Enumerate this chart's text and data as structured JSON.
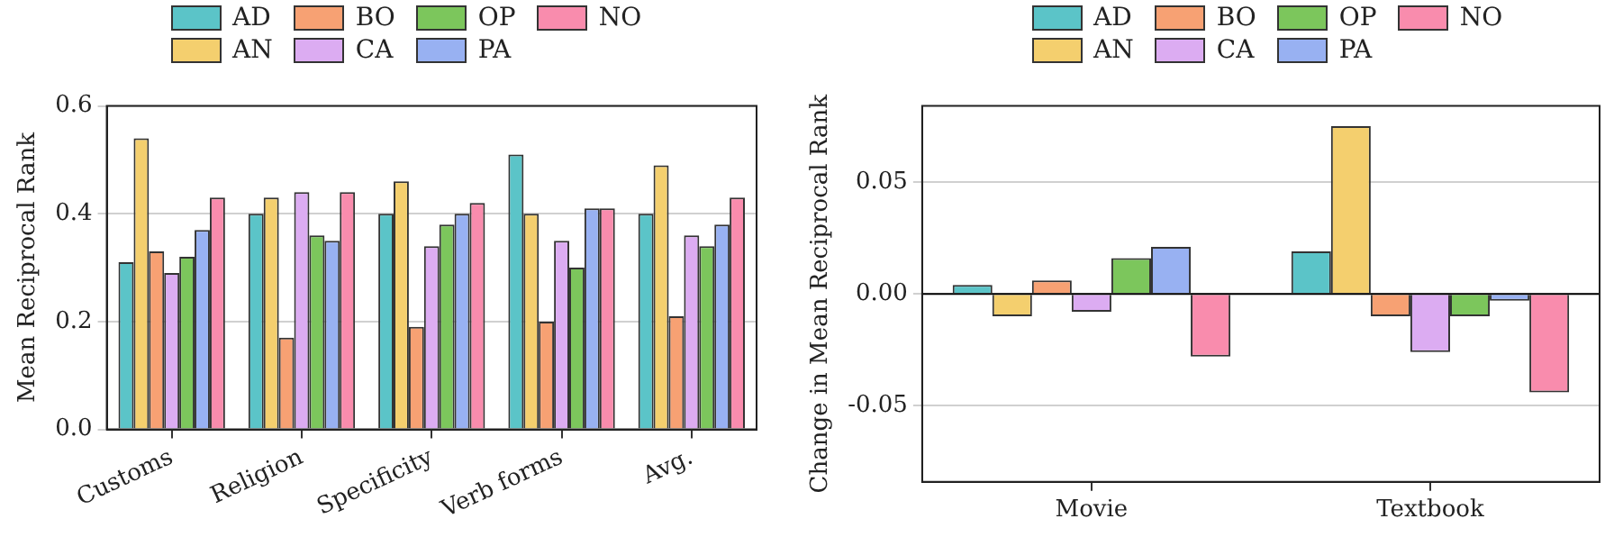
{
  "chart_data": [
    {
      "type": "bar",
      "ylabel": "Mean Reciprocal Rank",
      "categories": [
        "Customs",
        "Religion",
        "Specificity",
        "Verb forms",
        "Avg."
      ],
      "series": [
        {
          "name": "AD",
          "color": "#5bc4c8",
          "values": [
            0.31,
            0.4,
            0.4,
            0.51,
            0.4
          ]
        },
        {
          "name": "AN",
          "color": "#f4cf6e",
          "values": [
            0.54,
            0.43,
            0.46,
            0.4,
            0.49
          ]
        },
        {
          "name": "BO",
          "color": "#f7a173",
          "values": [
            0.33,
            0.17,
            0.19,
            0.2,
            0.21
          ]
        },
        {
          "name": "CA",
          "color": "#dcacf2",
          "values": [
            0.29,
            0.44,
            0.34,
            0.35,
            0.36
          ]
        },
        {
          "name": "OP",
          "color": "#7cc65c",
          "values": [
            0.32,
            0.36,
            0.38,
            0.3,
            0.34
          ]
        },
        {
          "name": "PA",
          "color": "#98b1f2",
          "values": [
            0.37,
            0.35,
            0.4,
            0.41,
            0.38
          ]
        },
        {
          "name": "NO",
          "color": "#f98cad",
          "values": [
            0.43,
            0.44,
            0.42,
            0.41,
            0.43
          ]
        }
      ],
      "ylim": [
        0,
        0.6
      ],
      "yticks": [
        {
          "value": 0,
          "label": "0.0"
        },
        {
          "value": 0.2,
          "label": "0.2"
        },
        {
          "value": 0.4,
          "label": "0.4"
        },
        {
          "value": 0.6,
          "label": "0.6"
        }
      ],
      "grid": "y",
      "legend": "top"
    },
    {
      "type": "bar",
      "ylabel": "Change in Mean Reciprocal Rank",
      "categories": [
        "Movie",
        "Textbook"
      ],
      "series": [
        {
          "name": "AD",
          "color": "#5bc4c8",
          "values": [
            0.004,
            0.019
          ]
        },
        {
          "name": "AN",
          "color": "#f4cf6e",
          "values": [
            -0.01,
            0.075
          ]
        },
        {
          "name": "BO",
          "color": "#f7a173",
          "values": [
            0.006,
            -0.01
          ]
        },
        {
          "name": "CA",
          "color": "#dcacf2",
          "values": [
            -0.008,
            -0.026
          ]
        },
        {
          "name": "OP",
          "color": "#7cc65c",
          "values": [
            0.016,
            -0.01
          ]
        },
        {
          "name": "PA",
          "color": "#98b1f2",
          "values": [
            0.021,
            -0.003
          ]
        },
        {
          "name": "NO",
          "color": "#f98cad",
          "values": [
            -0.028,
            -0.044
          ]
        }
      ],
      "ylim": [
        -0.084,
        0.084
      ],
      "yticks": [
        {
          "value": -0.05,
          "label": "-0.05"
        },
        {
          "value": 0,
          "label": "0.00"
        },
        {
          "value": 0.05,
          "label": "0.05"
        }
      ],
      "ref_lines": [
        {
          "axis": "y",
          "value": 0,
          "color": "#000000"
        }
      ],
      "grid": "y",
      "legend": "top"
    }
  ]
}
